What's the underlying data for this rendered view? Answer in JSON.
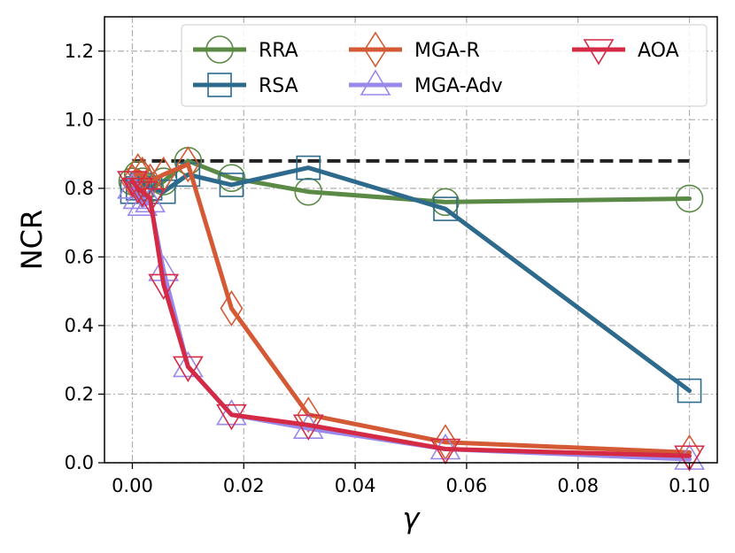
{
  "chart_data": {
    "type": "line",
    "title": "",
    "xlabel": "γ",
    "ylabel": "NCR",
    "xlim": [
      -0.005,
      0.105
    ],
    "ylim": [
      0.0,
      1.3
    ],
    "xticks": [
      0.0,
      0.02,
      0.04,
      0.06,
      0.08,
      0.1
    ],
    "xtick_labels": [
      "0.00",
      "0.02",
      "0.04",
      "0.06",
      "0.08",
      "0.10"
    ],
    "yticks": [
      0.0,
      0.2,
      0.4,
      0.6,
      0.8,
      1.0,
      1.2
    ],
    "ytick_labels": [
      "0.0",
      "0.2",
      "0.4",
      "0.6",
      "0.8",
      "1.0",
      "1.2"
    ],
    "grid": true,
    "legend_position": "top",
    "reference_line": {
      "y": 0.88,
      "x": [
        0.0,
        0.1
      ],
      "color": "#222222",
      "style": "dashed"
    },
    "series": [
      {
        "name": "RRA",
        "color": "#5a8a46",
        "marker": "circle",
        "x": [
          0.0,
          0.001,
          0.0018,
          0.0032,
          0.0056,
          0.01,
          0.0178,
          0.0316,
          0.0562,
          0.1
        ],
        "y": [
          0.82,
          0.84,
          0.82,
          0.8,
          0.82,
          0.88,
          0.83,
          0.79,
          0.76,
          0.77
        ]
      },
      {
        "name": "RSA",
        "color": "#2d6a8c",
        "marker": "square",
        "x": [
          0.0,
          0.001,
          0.0018,
          0.0032,
          0.0056,
          0.01,
          0.0178,
          0.0316,
          0.0562,
          0.1
        ],
        "y": [
          0.79,
          0.8,
          0.81,
          0.8,
          0.79,
          0.84,
          0.81,
          0.86,
          0.74,
          0.21
        ]
      },
      {
        "name": "MGA-R",
        "color": "#d45a35",
        "marker": "diamond",
        "x": [
          0.0,
          0.001,
          0.0018,
          0.0032,
          0.0056,
          0.01,
          0.0178,
          0.0316,
          0.0562,
          0.1
        ],
        "y": [
          0.82,
          0.85,
          0.84,
          0.82,
          0.84,
          0.87,
          0.45,
          0.14,
          0.06,
          0.03
        ]
      },
      {
        "name": "MGA-Adv",
        "color": "#9a88ea",
        "marker": "triangle-up",
        "x": [
          0.0,
          0.001,
          0.0018,
          0.0032,
          0.0056,
          0.01,
          0.0178,
          0.0316,
          0.0562,
          0.1
        ],
        "y": [
          0.8,
          0.77,
          0.75,
          0.76,
          0.56,
          0.28,
          0.14,
          0.1,
          0.04,
          0.01
        ]
      },
      {
        "name": "AOA",
        "color": "#d42a45",
        "marker": "triangle-down",
        "x": [
          0.0,
          0.001,
          0.0018,
          0.0032,
          0.0056,
          0.01,
          0.0178,
          0.0316,
          0.0562,
          0.1
        ],
        "y": [
          0.82,
          0.8,
          0.79,
          0.77,
          0.52,
          0.28,
          0.14,
          0.11,
          0.04,
          0.02
        ]
      }
    ]
  }
}
